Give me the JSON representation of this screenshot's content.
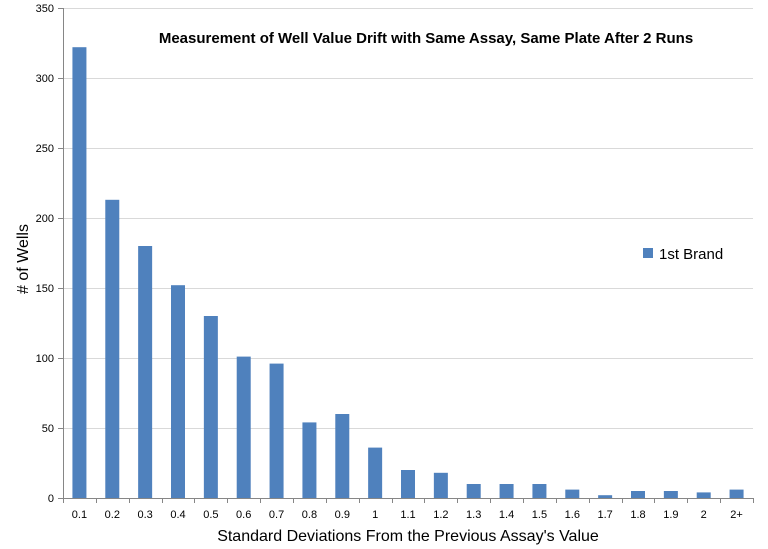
{
  "chart_data": {
    "type": "bar",
    "title": "Measurement of Well Value Drift with Same Assay, Same Plate After 2 Runs",
    "xlabel": "Standard Deviations From the Previous Assay's Value",
    "ylabel": "# of Wells",
    "ylim": [
      0,
      350
    ],
    "yticks": [
      0,
      50,
      100,
      150,
      200,
      250,
      300,
      350
    ],
    "grid": true,
    "legend_position": "right",
    "categories": [
      "0.1",
      "0.2",
      "0.3",
      "0.4",
      "0.5",
      "0.6",
      "0.7",
      "0.8",
      "0.9",
      "1",
      "1.1",
      "1.2",
      "1.3",
      "1.4",
      "1.5",
      "1.6",
      "1.7",
      "1.8",
      "1.9",
      "2",
      "2+"
    ],
    "series": [
      {
        "name": "1st Brand",
        "color": "#4f81bd",
        "values": [
          322,
          213,
          180,
          152,
          130,
          101,
          96,
          54,
          60,
          36,
          20,
          18,
          10,
          10,
          10,
          6,
          2,
          5,
          5,
          4,
          6
        ]
      }
    ]
  }
}
